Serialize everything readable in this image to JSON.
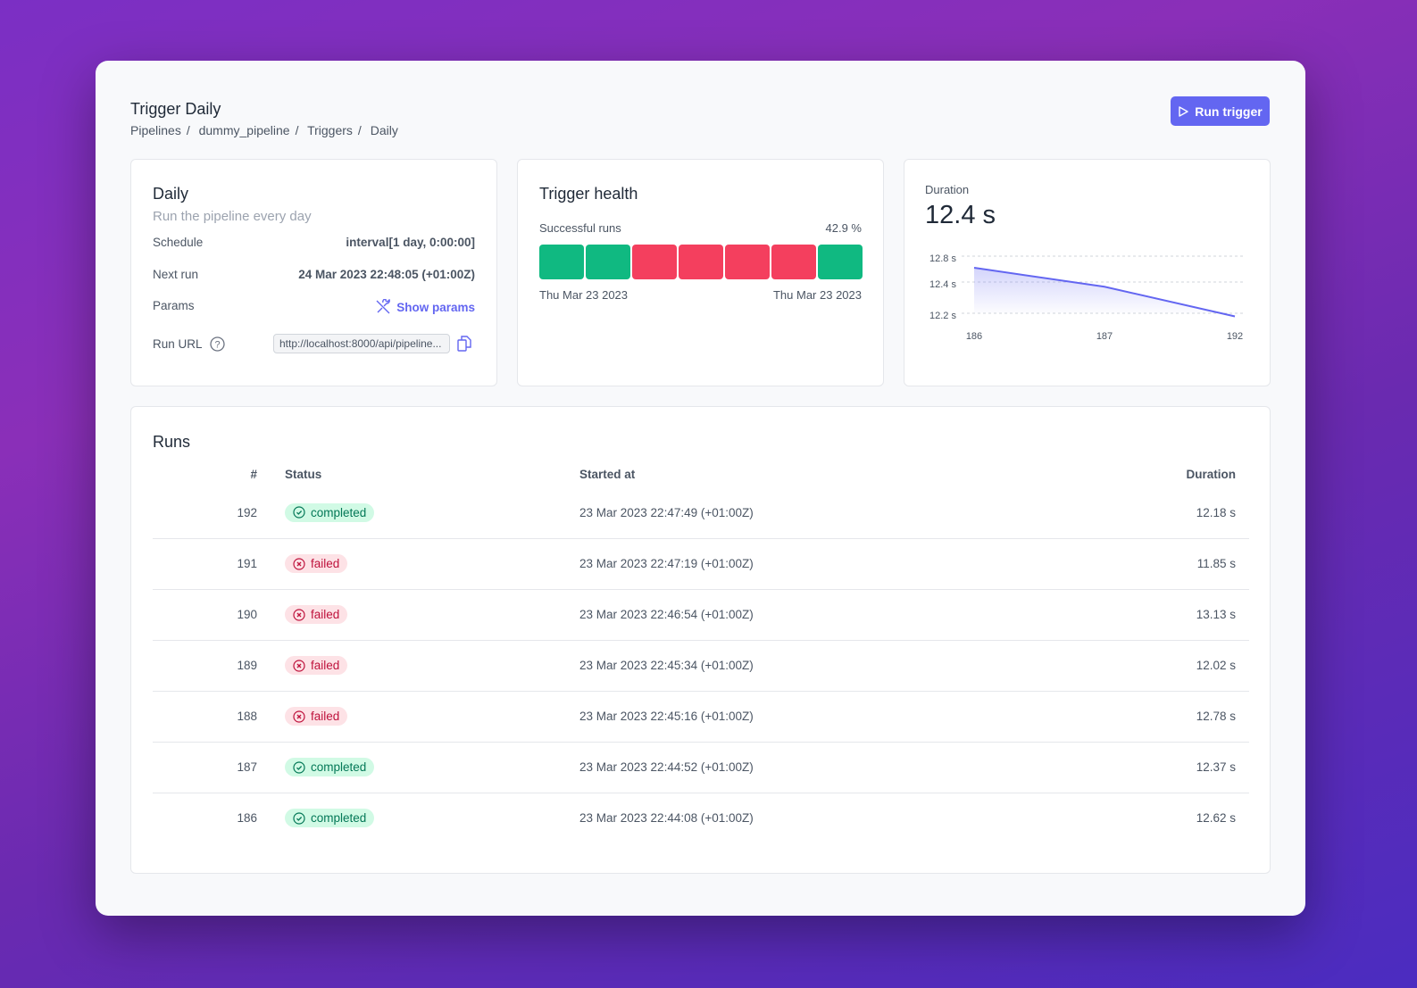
{
  "header": {
    "title": "Trigger Daily",
    "breadcrumb": [
      "Pipelines",
      "dummy_pipeline",
      "Triggers",
      "Daily"
    ],
    "run_button": "Run trigger"
  },
  "info": {
    "title": "Daily",
    "description": "Run the pipeline every day",
    "schedule_label": "Schedule",
    "schedule": "interval[1 day, 0:00:00]",
    "next_run_label": "Next run",
    "next_run": "24 Mar 2023 22:48:05 (+01:00Z)",
    "params_label": "Params",
    "show_params": "Show params",
    "run_url_label": "Run URL",
    "run_url": "http://localhost:8000/api/pipeline..."
  },
  "health": {
    "title": "Trigger health",
    "label": "Successful runs",
    "percent": "42.9 %",
    "runs": [
      "success",
      "success",
      "failed",
      "failed",
      "failed",
      "failed",
      "success"
    ],
    "start_date": "Thu Mar 23 2023",
    "end_date": "Thu Mar 23 2023",
    "colors": {
      "success": "#10b981",
      "failed": "#f43f5e"
    }
  },
  "duration": {
    "label": "Duration",
    "value": "12.4 s"
  },
  "chart_data": {
    "type": "area",
    "x": [
      "186",
      "187",
      "192"
    ],
    "values": [
      12.62,
      12.37,
      12.18
    ],
    "y_ticks": [
      "12.8 s",
      "12.4 s",
      "12.2 s"
    ],
    "y_tick_values": [
      12.8,
      12.4,
      12.2
    ],
    "grid": true,
    "color": "#6366f1"
  },
  "runs": {
    "title": "Runs",
    "columns": [
      "#",
      "Status",
      "Started at",
      "Duration"
    ],
    "rows": [
      {
        "id": "192",
        "status": "completed",
        "started": "23 Mar 2023 22:47:49 (+01:00Z)",
        "duration": "12.18 s"
      },
      {
        "id": "191",
        "status": "failed",
        "started": "23 Mar 2023 22:47:19 (+01:00Z)",
        "duration": "11.85 s"
      },
      {
        "id": "190",
        "status": "failed",
        "started": "23 Mar 2023 22:46:54 (+01:00Z)",
        "duration": "13.13 s"
      },
      {
        "id": "189",
        "status": "failed",
        "started": "23 Mar 2023 22:45:34 (+01:00Z)",
        "duration": "12.02 s"
      },
      {
        "id": "188",
        "status": "failed",
        "started": "23 Mar 2023 22:45:16 (+01:00Z)",
        "duration": "12.78 s"
      },
      {
        "id": "187",
        "status": "completed",
        "started": "23 Mar 2023 22:44:52 (+01:00Z)",
        "duration": "12.37 s"
      },
      {
        "id": "186",
        "status": "completed",
        "started": "23 Mar 2023 22:44:08 (+01:00Z)",
        "duration": "12.62 s"
      }
    ]
  }
}
